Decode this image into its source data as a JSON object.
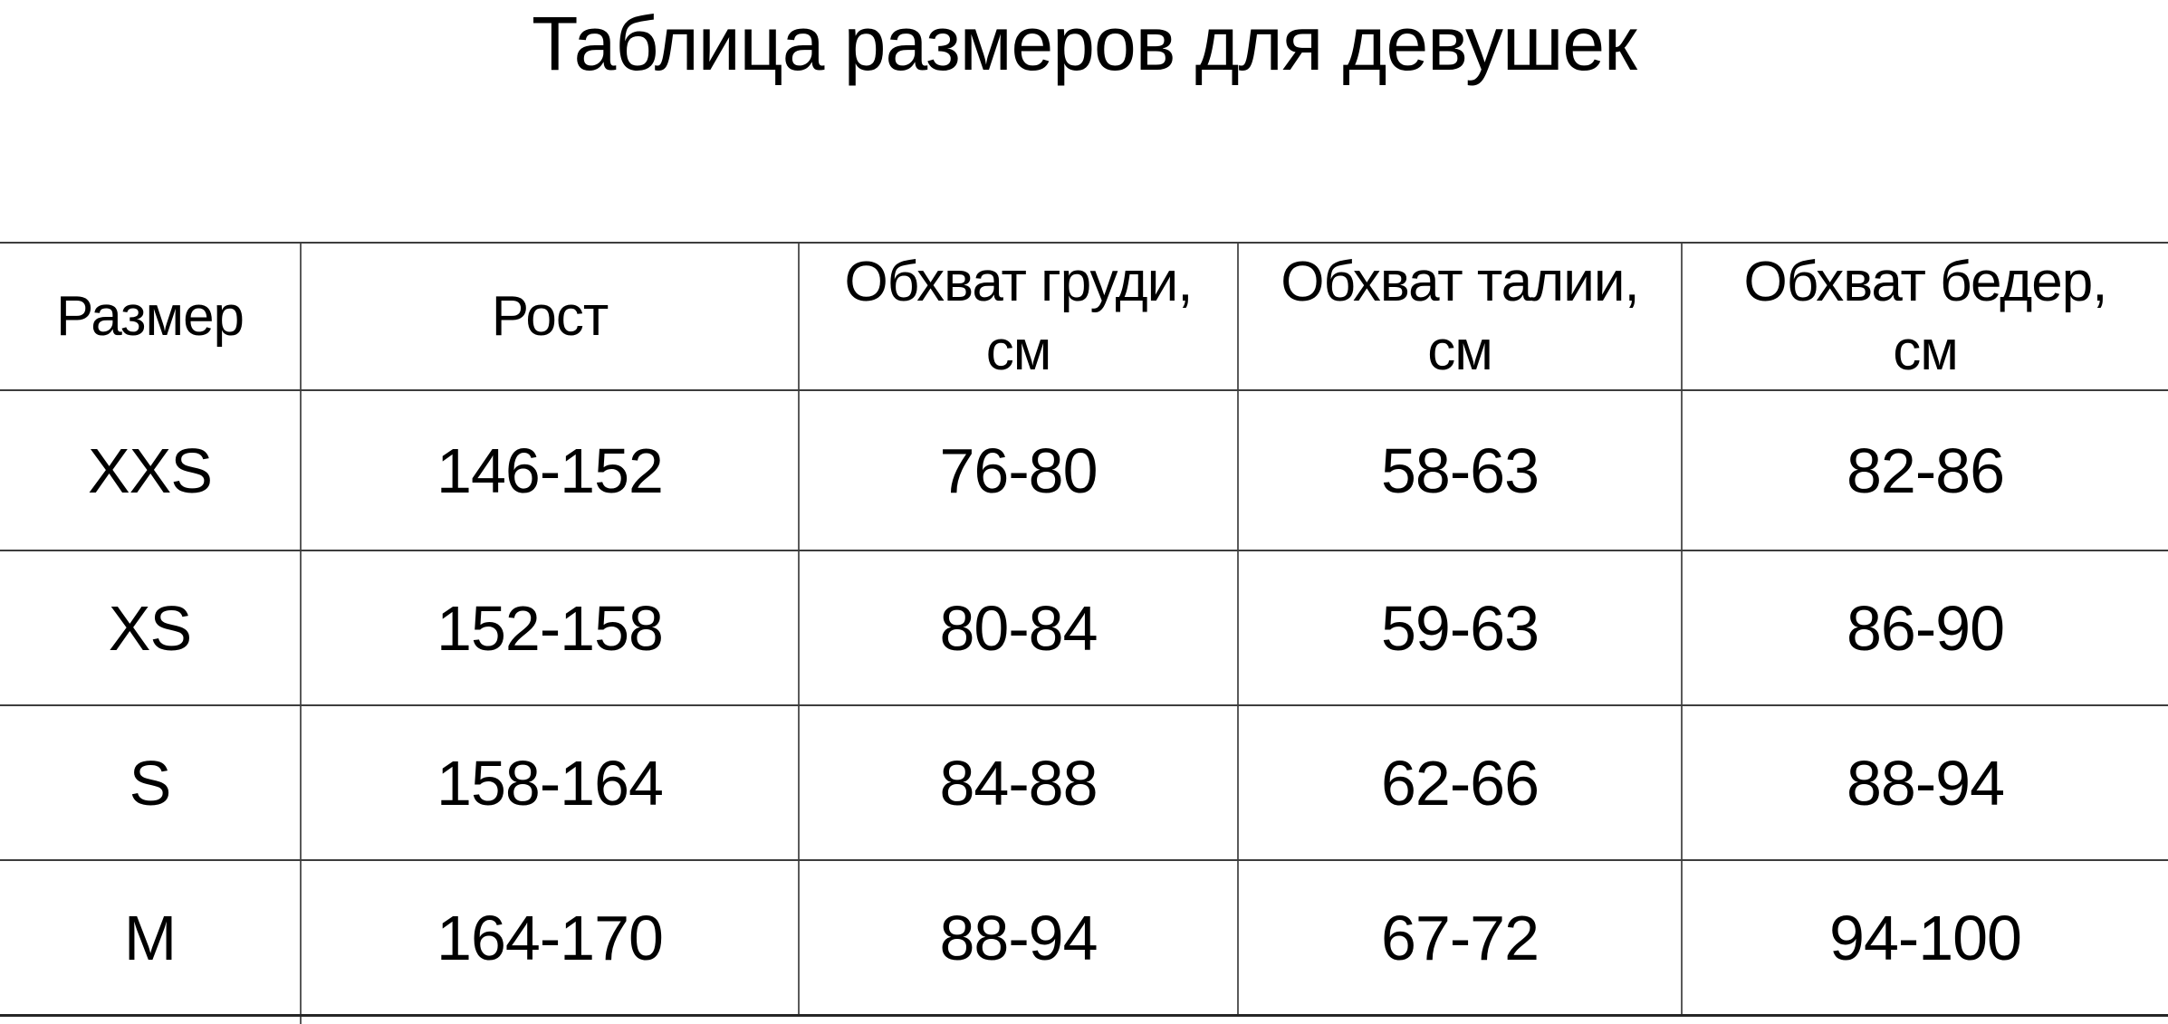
{
  "title": "Таблица размеров для девушек",
  "table": {
    "columns": [
      "Размер",
      "Рост",
      "Обхват груди, см",
      "Обхват талии, см",
      "Обхват бедер, см"
    ],
    "rows": [
      [
        "XXS",
        "146-152",
        "76-80",
        "58-63",
        "82-86"
      ],
      [
        "XS",
        "152-158",
        "80-84",
        "59-63",
        "86-90"
      ],
      [
        "S",
        "158-164",
        "84-88",
        "62-66",
        "88-94"
      ],
      [
        "M",
        "164-170",
        "88-94",
        "67-72",
        "94-100"
      ]
    ]
  },
  "colors": {
    "background": "#ffffff",
    "text": "#000000",
    "rule_horizontal": "#3d3d3d",
    "rule_vertical": "#5a5a5a",
    "rule_bottom_thick": "#262626"
  },
  "chart_data": {
    "type": "table",
    "title": "Таблица размеров для девушек",
    "columns": [
      "Размер",
      "Рост",
      "Обхват груди, см",
      "Обхват талии, см",
      "Обхват бедер, см"
    ],
    "rows": [
      [
        "XXS",
        "146-152",
        "76-80",
        "58-63",
        "82-86"
      ],
      [
        "XS",
        "152-158",
        "80-84",
        "59-63",
        "86-90"
      ],
      [
        "S",
        "158-164",
        "84-88",
        "62-66",
        "88-94"
      ],
      [
        "M",
        "164-170",
        "88-94",
        "67-72",
        "94-100"
      ]
    ],
    "layout_hints": {
      "horizontal_rules_full_width": true,
      "outer_side_borders": false,
      "bottom_rule_thicker": true,
      "next_row_partially_cut_off": true
    }
  }
}
